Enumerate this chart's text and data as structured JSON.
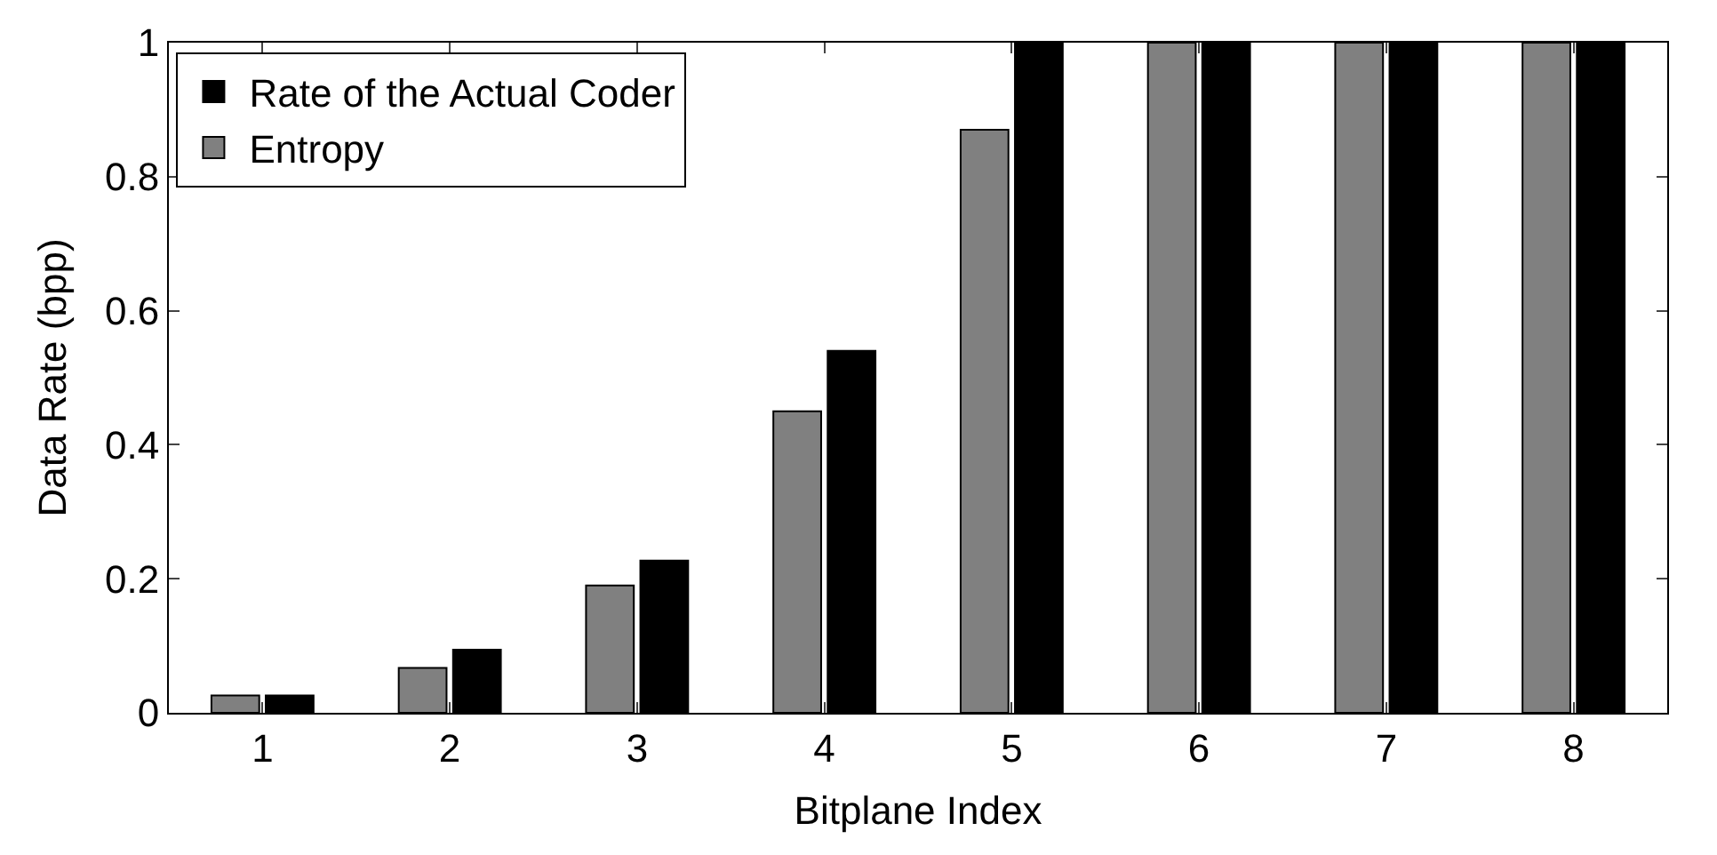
{
  "chart_data": {
    "type": "bar",
    "xlabel": "Bitplane Index",
    "ylabel": "Data Rate (bpp)",
    "categories": [
      "1",
      "2",
      "3",
      "4",
      "5",
      "6",
      "7",
      "8"
    ],
    "series": [
      {
        "name": "Entropy",
        "color": "#808080",
        "values": [
          0.026,
          0.067,
          0.19,
          0.45,
          0.87,
          1,
          1,
          1
        ]
      },
      {
        "name": "Rate of the Actual Coder",
        "color": "#000000",
        "values": [
          0.026,
          0.094,
          0.227,
          0.54,
          1,
          1,
          1,
          1
        ]
      }
    ],
    "ylim": [
      0,
      1
    ],
    "yticks": [
      0,
      0.2,
      0.4,
      0.6,
      0.8,
      1
    ],
    "legend": "top left"
  }
}
